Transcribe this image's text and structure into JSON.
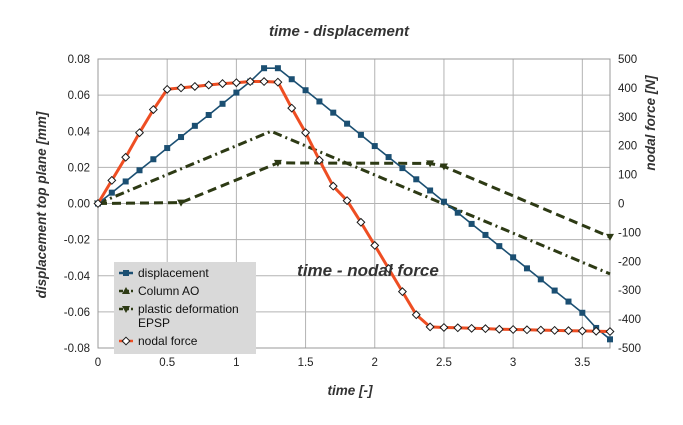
{
  "chart_data": {
    "type": "line",
    "title": "time - displacement",
    "subtitle": "time - nodal force",
    "xlabel": "time [-]",
    "ylabel": "displacement top plane [mm]",
    "y2label": "nodal force [N]",
    "xlim": [
      0,
      3.7
    ],
    "ylim": [
      -0.08,
      0.08
    ],
    "y2lim": [
      -500,
      500
    ],
    "x_ticks": [
      0,
      0.5,
      1,
      1.5,
      2,
      2.5,
      3,
      3.5
    ],
    "x_tick_labels": [
      "0",
      "0.5",
      "1",
      "1.5",
      "2",
      "2.5",
      "3",
      "3.5"
    ],
    "y_ticks": [
      0.08,
      0.06,
      0.04,
      0.02,
      0,
      -0.02,
      -0.04,
      -0.06,
      -0.08
    ],
    "y_tick_labels": [
      "0.08",
      "0.06",
      "0.04",
      "0.02",
      "0.00",
      "-0.02",
      "-0.04",
      "-0.06",
      "-0.08"
    ],
    "y2_ticks": [
      500,
      400,
      300,
      200,
      100,
      0,
      -100,
      -200,
      -300,
      -400,
      -500
    ],
    "y2_tick_labels": [
      "500",
      "400",
      "300",
      "200",
      "100",
      "0",
      "-100",
      "-200",
      "-300",
      "-400",
      "-500"
    ],
    "grid": true,
    "legend_position": "bottom-left",
    "series": [
      {
        "name": "displacement",
        "axis": "left",
        "color": "#1b4f72",
        "style": "solid",
        "marker": "square",
        "x": [
          0,
          0.1,
          0.2,
          0.3,
          0.4,
          0.5,
          0.6,
          0.7,
          0.8,
          0.9,
          1.0,
          1.1,
          1.2,
          1.3,
          1.4,
          1.5,
          1.6,
          1.7,
          1.8,
          1.9,
          2.0,
          2.1,
          2.2,
          2.3,
          2.4,
          2.5,
          2.6,
          2.7,
          2.8,
          2.9,
          3.0,
          3.1,
          3.2,
          3.3,
          3.4,
          3.5,
          3.6,
          3.7
        ],
        "y": [
          0,
          0.006,
          0.0122,
          0.0184,
          0.0245,
          0.0307,
          0.0368,
          0.043,
          0.049,
          0.0552,
          0.0614,
          0.0675,
          0.0749,
          0.0749,
          0.0688,
          0.0627,
          0.0565,
          0.0503,
          0.0442,
          0.038,
          0.0318,
          0.0257,
          0.0196,
          0.0134,
          0.0072,
          0.001,
          -0.0051,
          -0.0113,
          -0.0174,
          -0.0236,
          -0.0298,
          -0.0359,
          -0.042,
          -0.0482,
          -0.0543,
          -0.0605,
          -0.0689,
          -0.0752
        ]
      },
      {
        "name": "Column AO",
        "axis": "left",
        "color": "#2d3a14",
        "style": "dashdot",
        "marker": "none",
        "x": [
          0,
          1.25,
          3.7
        ],
        "y": [
          0,
          0.04,
          -0.039
        ]
      },
      {
        "name": "plastic deformation EPSP",
        "axis": "left",
        "color": "#2d3a14",
        "style": "dashed",
        "marker": "triangle-down",
        "x": [
          0,
          0.6,
          1.3,
          2.4,
          2.5,
          3.7
        ],
        "y": [
          0,
          0.0005,
          0.0225,
          0.0222,
          0.0205,
          -0.0185
        ]
      },
      {
        "name": "nodal force",
        "axis": "right",
        "color": "#ee4e23",
        "style": "solid",
        "marker": "diamond",
        "x": [
          0,
          0.1,
          0.2,
          0.3,
          0.4,
          0.5,
          0.6,
          0.7,
          0.8,
          0.9,
          1.0,
          1.1,
          1.2,
          1.3,
          1.4,
          1.5,
          1.6,
          1.7,
          1.8,
          1.9,
          2.0,
          2.1,
          2.2,
          2.3,
          2.4,
          2.5,
          2.6,
          2.7,
          2.8,
          2.9,
          3.0,
          3.1,
          3.2,
          3.3,
          3.4,
          3.5,
          3.6,
          3.7
        ],
        "y": [
          0,
          80,
          160,
          245,
          325,
          395,
          400,
          405,
          410,
          415,
          418,
          422,
          422,
          420,
          330,
          245,
          150,
          60,
          10,
          -65,
          -145,
          -225,
          -305,
          -385,
          -427,
          -429,
          -430,
          -432,
          -433,
          -435,
          -436,
          -437,
          -438,
          -439,
          -440,
          -441,
          -442,
          -443
        ]
      }
    ]
  }
}
